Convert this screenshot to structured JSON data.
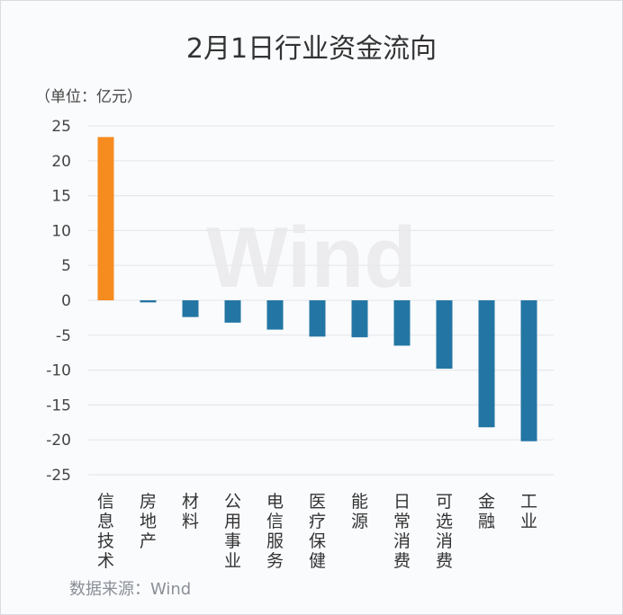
{
  "chart_data": {
    "type": "bar",
    "title": "2月1日行业资金流向",
    "unit_label": "（单位：亿元）",
    "source": "数据来源：Wind",
    "watermark": "Wind",
    "categories": [
      "信息技术",
      "房地产",
      "材料",
      "公用事业",
      "电信服务",
      "医疗保健",
      "能源",
      "日常消费",
      "可选消费",
      "金融",
      "工业"
    ],
    "values": [
      23.4,
      -0.3,
      -2.4,
      -3.2,
      -4.2,
      -5.2,
      -5.3,
      -6.5,
      -9.8,
      -18.2,
      -20.2
    ],
    "ylim": [
      -25,
      25
    ],
    "yticks": [
      25,
      20,
      15,
      10,
      5,
      0,
      -5,
      -10,
      -15,
      -20,
      -25
    ],
    "grid": true,
    "colors": {
      "positive": "#f68b1f",
      "negative": "#2376a3"
    }
  }
}
